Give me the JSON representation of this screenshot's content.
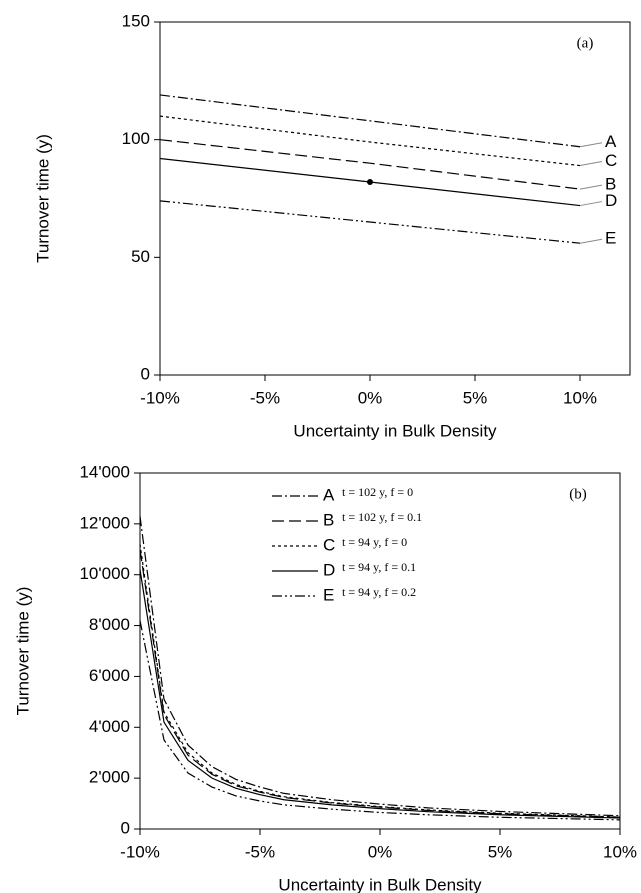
{
  "chart_data": [
    {
      "type": "line",
      "panel_label": "(a)",
      "x_label": "Uncertainty in Bulk Density",
      "y_label": "Turnover time (y)",
      "x": [
        -10,
        0,
        10
      ],
      "xlim": [
        -10,
        10
      ],
      "xticks": [
        {
          "value": -10,
          "label": "-10%"
        },
        {
          "value": -5,
          "label": "-5%"
        },
        {
          "value": 0,
          "label": "0%"
        },
        {
          "value": 5,
          "label": "5%"
        },
        {
          "value": 10,
          "label": "10%"
        }
      ],
      "ylim": [
        0,
        150
      ],
      "yticks": [
        0,
        50,
        100,
        150
      ],
      "series": [
        {
          "name": "A",
          "color": "#000000",
          "dash": "10,3,2,3",
          "values": [
            119,
            108,
            97
          ]
        },
        {
          "name": "C",
          "color": "#000000",
          "dash": "3,3",
          "values": [
            110,
            99,
            89
          ]
        },
        {
          "name": "B",
          "color": "#000000",
          "dash": "12,5",
          "values": [
            100,
            90,
            79
          ]
        },
        {
          "name": "D",
          "color": "#000000",
          "dash": "none",
          "values": [
            92,
            82,
            72
          ]
        },
        {
          "name": "E",
          "color": "#000000",
          "dash": "10,3,2,3,2,3",
          "values": [
            74,
            65,
            56
          ]
        }
      ],
      "point": {
        "x": 0,
        "y": 82
      }
    },
    {
      "type": "line",
      "panel_label": "(b)",
      "x_label": "Uncertainty in Bulk Density",
      "y_label": "Turnover time (y)",
      "x": [
        -10,
        -9,
        -8,
        -7,
        -6,
        -5,
        -4,
        -2,
        0,
        2,
        5,
        10
      ],
      "xlim": [
        -10,
        10
      ],
      "xticks": [
        {
          "value": -10,
          "label": "-10%"
        },
        {
          "value": -5,
          "label": "-5%"
        },
        {
          "value": 0,
          "label": "0%"
        },
        {
          "value": 5,
          "label": "5%"
        },
        {
          "value": 10,
          "label": "10%"
        }
      ],
      "ylim": [
        0,
        14000
      ],
      "yticks": [
        0,
        {
          "value": 2000,
          "label": "2'000"
        },
        {
          "value": 4000,
          "label": "4'000"
        },
        {
          "value": 6000,
          "label": "6'000"
        },
        {
          "value": 8000,
          "label": "8'000"
        },
        {
          "value": 10000,
          "label": "10'000"
        },
        {
          "value": 12000,
          "label": "12'000"
        },
        {
          "value": 14000,
          "label": "14'000"
        }
      ],
      "series": [
        {
          "name": "A",
          "description": "t = 102 y, f = 0",
          "color": "#000000",
          "dash": "10,3,2,3",
          "values": [
            12300,
            5100,
            3300,
            2450,
            1950,
            1650,
            1400,
            1150,
            980,
            830,
            690,
            520
          ]
        },
        {
          "name": "B",
          "description": "t = 102 y, f = 0.1",
          "color": "#000000",
          "dash": "12,5",
          "values": [
            11000,
            4500,
            2900,
            2150,
            1700,
            1450,
            1240,
            1020,
            860,
            730,
            600,
            460
          ]
        },
        {
          "name": "C",
          "description": "t = 94 y, f = 0",
          "color": "#000000",
          "dash": "3,3",
          "values": [
            11200,
            4600,
            3000,
            2200,
            1750,
            1480,
            1270,
            1040,
            880,
            750,
            620,
            470
          ]
        },
        {
          "name": "D",
          "description": "t = 94 y, f = 0.1",
          "color": "#000000",
          "dash": "none",
          "values": [
            10200,
            4200,
            2700,
            2000,
            1600,
            1350,
            1150,
            950,
            800,
            680,
            560,
            430
          ]
        },
        {
          "name": "E",
          "description": "t = 94 y, f = 0.2",
          "color": "#000000",
          "dash": "10,3,2,3,2,3",
          "values": [
            8200,
            3500,
            2200,
            1650,
            1300,
            1100,
            950,
            780,
            650,
            560,
            460,
            360
          ]
        }
      ]
    }
  ]
}
